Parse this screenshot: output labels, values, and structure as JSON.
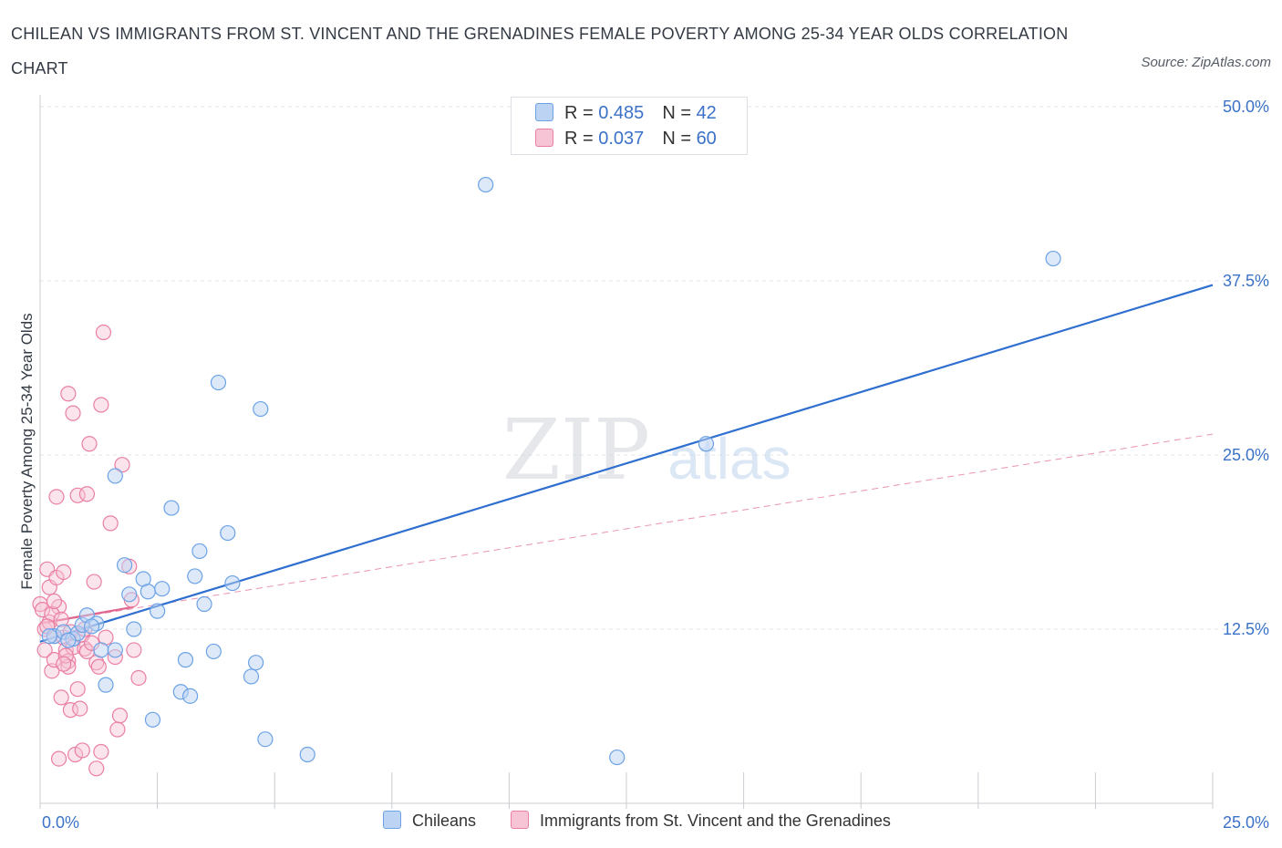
{
  "title": "CHILEAN VS IMMIGRANTS FROM ST. VINCENT AND THE GRENADINES FEMALE POVERTY AMONG 25-34 YEAR OLDS CORRELATION CHART",
  "source": "Source: ZipAtlas.com",
  "watermark": {
    "zip": "ZIP",
    "atlas": "atlas"
  },
  "colors": {
    "blue": "#6ba2e6",
    "blue_fill": "#bcd3f3",
    "blue_line": "#2f6fcf",
    "pink": "#ea7fa2",
    "pink_fill": "#f6c4d4",
    "pink_line": "#e0668f",
    "axis_text": "#3b72c8"
  },
  "legend": {
    "rows": [
      {
        "r_label": "R = ",
        "r_value": "0.485",
        "n_label": "N = ",
        "n_value": "42"
      },
      {
        "r_label": "R = ",
        "r_value": "0.037",
        "n_label": "N = ",
        "n_value": "60"
      }
    ]
  },
  "chart_data": {
    "type": "scatter",
    "xlabel": "",
    "ylabel": "Female Poverty Among 25-34 Year Olds",
    "xlim": [
      0,
      25
    ],
    "ylim": [
      0,
      50
    ],
    "x_tick_labels": [
      {
        "value": 0,
        "label": "0.0%"
      },
      {
        "value": 25,
        "label": "25.0%"
      }
    ],
    "y_tick_labels": [
      {
        "value": 12.5,
        "label": "12.5%"
      },
      {
        "value": 25,
        "label": "25.0%"
      },
      {
        "value": 37.5,
        "label": "37.5%"
      },
      {
        "value": 50,
        "label": "50.0%"
      }
    ],
    "grid": true,
    "legend_position": "top-center",
    "series": [
      {
        "name": "Chileans",
        "color": "#6ba2e6",
        "trend": {
          "x": [
            0,
            25
          ],
          "y": [
            11.6,
            37.2
          ]
        },
        "points": [
          [
            0.3,
            12.0
          ],
          [
            0.5,
            12.3
          ],
          [
            0.7,
            11.8
          ],
          [
            0.8,
            12.2
          ],
          [
            0.9,
            12.8
          ],
          [
            1.0,
            13.5
          ],
          [
            1.2,
            12.9
          ],
          [
            1.3,
            11.0
          ],
          [
            1.4,
            8.5
          ],
          [
            1.6,
            11.0
          ],
          [
            1.6,
            23.5
          ],
          [
            1.8,
            17.1
          ],
          [
            1.9,
            15.0
          ],
          [
            2.0,
            12.5
          ],
          [
            2.2,
            16.1
          ],
          [
            2.3,
            15.2
          ],
          [
            2.4,
            6.0
          ],
          [
            2.5,
            13.8
          ],
          [
            2.6,
            15.4
          ],
          [
            2.8,
            21.2
          ],
          [
            3.0,
            8.0
          ],
          [
            3.1,
            10.3
          ],
          [
            3.2,
            7.7
          ],
          [
            3.3,
            16.3
          ],
          [
            3.4,
            18.1
          ],
          [
            3.5,
            14.3
          ],
          [
            3.7,
            10.9
          ],
          [
            3.8,
            30.2
          ],
          [
            4.0,
            19.4
          ],
          [
            4.1,
            15.8
          ],
          [
            4.5,
            9.1
          ],
          [
            4.6,
            10.1
          ],
          [
            4.7,
            28.3
          ],
          [
            4.8,
            4.6
          ],
          [
            5.7,
            3.5
          ],
          [
            9.5,
            44.4
          ],
          [
            12.3,
            3.3
          ],
          [
            14.2,
            25.8
          ],
          [
            21.6,
            39.1
          ],
          [
            0.2,
            12.0
          ],
          [
            0.6,
            11.7
          ],
          [
            1.1,
            12.7
          ]
        ]
      },
      {
        "name": "Immigrants from St. Vincent and the Grenadines",
        "color": "#ea7fa2",
        "trend": {
          "x": [
            0,
            2.0
          ],
          "y": [
            12.9,
            14.1
          ]
        },
        "trend_extended": {
          "x": [
            0,
            25
          ],
          "y": [
            12.9,
            26.5
          ]
        },
        "points": [
          [
            0.0,
            14.3
          ],
          [
            0.05,
            13.9
          ],
          [
            0.1,
            12.5
          ],
          [
            0.1,
            11.0
          ],
          [
            0.15,
            16.8
          ],
          [
            0.2,
            15.5
          ],
          [
            0.2,
            13.0
          ],
          [
            0.25,
            9.5
          ],
          [
            0.3,
            12.0
          ],
          [
            0.3,
            10.3
          ],
          [
            0.35,
            16.2
          ],
          [
            0.35,
            22.0
          ],
          [
            0.4,
            14.1
          ],
          [
            0.4,
            3.2
          ],
          [
            0.45,
            7.6
          ],
          [
            0.5,
            11.9
          ],
          [
            0.5,
            16.6
          ],
          [
            0.55,
            11.0
          ],
          [
            0.6,
            29.4
          ],
          [
            0.6,
            10.2
          ],
          [
            0.6,
            9.8
          ],
          [
            0.65,
            6.7
          ],
          [
            0.7,
            28.0
          ],
          [
            0.7,
            11.2
          ],
          [
            0.75,
            3.5
          ],
          [
            0.8,
            22.1
          ],
          [
            0.8,
            8.2
          ],
          [
            0.85,
            6.8
          ],
          [
            0.9,
            12.1
          ],
          [
            0.9,
            3.8
          ],
          [
            0.95,
            11.1
          ],
          [
            1.0,
            10.9
          ],
          [
            1.0,
            22.2
          ],
          [
            1.05,
            25.8
          ],
          [
            1.1,
            11.5
          ],
          [
            1.15,
            15.9
          ],
          [
            1.2,
            10.1
          ],
          [
            1.2,
            2.5
          ],
          [
            1.25,
            9.8
          ],
          [
            1.3,
            3.7
          ],
          [
            1.3,
            28.6
          ],
          [
            1.35,
            33.8
          ],
          [
            1.4,
            11.9
          ],
          [
            1.5,
            20.1
          ],
          [
            1.6,
            10.5
          ],
          [
            1.65,
            5.3
          ],
          [
            1.7,
            6.3
          ],
          [
            1.75,
            24.3
          ],
          [
            1.9,
            17.0
          ],
          [
            1.95,
            14.6
          ],
          [
            2.0,
            11.0
          ],
          [
            2.1,
            9.0
          ],
          [
            0.25,
            13.6
          ],
          [
            0.15,
            12.7
          ],
          [
            0.45,
            13.2
          ],
          [
            0.55,
            10.6
          ],
          [
            0.65,
            12.3
          ],
          [
            0.3,
            14.5
          ],
          [
            0.5,
            10.0
          ],
          [
            0.95,
            12.5
          ]
        ]
      }
    ]
  },
  "bottom_legend": [
    {
      "label": "Chileans"
    },
    {
      "label": "Immigrants from St. Vincent and the Grenadines"
    }
  ]
}
